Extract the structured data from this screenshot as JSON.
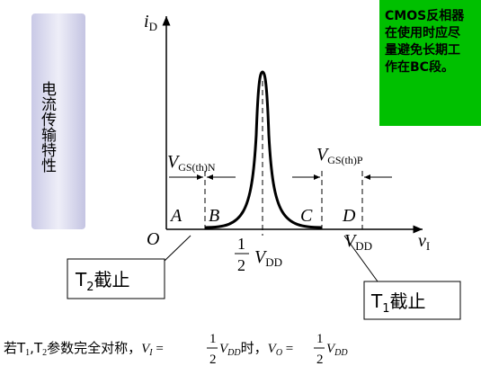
{
  "side_label": "电流传输特性",
  "note": [
    "CMOS反相器",
    "在使用时应尽",
    "量避免长期工",
    "作在BC段。"
  ],
  "axes": {
    "y": {
      "main": "i",
      "sub": "D"
    },
    "x": {
      "main": "v",
      "sub": "I"
    },
    "origin": "O"
  },
  "regions": [
    "A",
    "B",
    "C",
    "D"
  ],
  "thresholds": {
    "n": {
      "main": "V",
      "sub": "GS(th)N"
    },
    "p": {
      "main": "V",
      "sub": "GS(th)P"
    }
  },
  "half": {
    "num": "1",
    "den": "2",
    "main": "V",
    "sub": "DD"
  },
  "vdd": {
    "main": "V",
    "sub": "DD"
  },
  "callouts": {
    "t2": {
      "main": "T",
      "sub": "2",
      "rest": "截止"
    },
    "t1": {
      "main": "T",
      "sub": "1",
      "rest": "截止"
    }
  },
  "footer": {
    "lead": "若T",
    "s1": "1",
    "comma": ",T",
    "s2": "2",
    "mid": "参数完全对称，",
    "vi": "V",
    "vi_sub": "I",
    "eq1": " = ",
    "n1": "1",
    "d1": "2",
    "vdd1": "V",
    "vdd1_sub": "DD",
    "when": "时，",
    "vo": "V",
    "vo_sub": "O",
    "eq2": " = ",
    "n2": "1",
    "d2": "2",
    "vdd2": "V",
    "vdd2_sub": "DD"
  }
}
